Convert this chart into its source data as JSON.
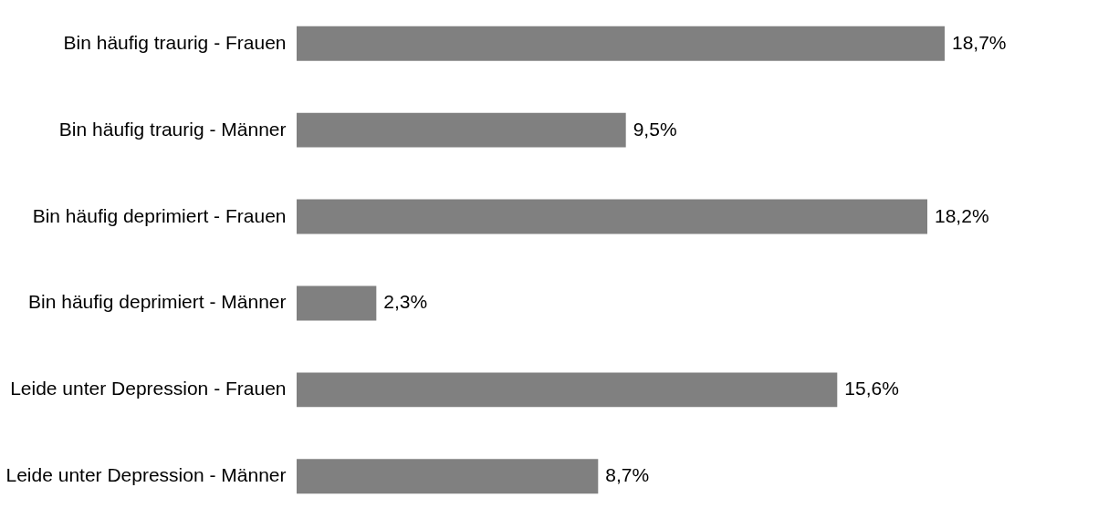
{
  "chart_data": {
    "type": "bar",
    "orientation": "horizontal",
    "categories": [
      "Bin häufig traurig - Frauen",
      "Bin häufig traurig - Männer",
      "Bin häufig deprimiert - Frauen",
      "Bin häufig deprimiert - Männer",
      "Leide unter Depression - Frauen",
      "Leide unter Depression - Männer"
    ],
    "values": [
      18.7,
      9.5,
      18.2,
      2.3,
      15.6,
      8.7
    ],
    "value_labels": [
      "18,7%",
      "9,5%",
      "18,2%",
      "2,3%",
      "15,6%",
      "8,7%"
    ],
    "color": "#808080",
    "tick_labels": "y"
  }
}
